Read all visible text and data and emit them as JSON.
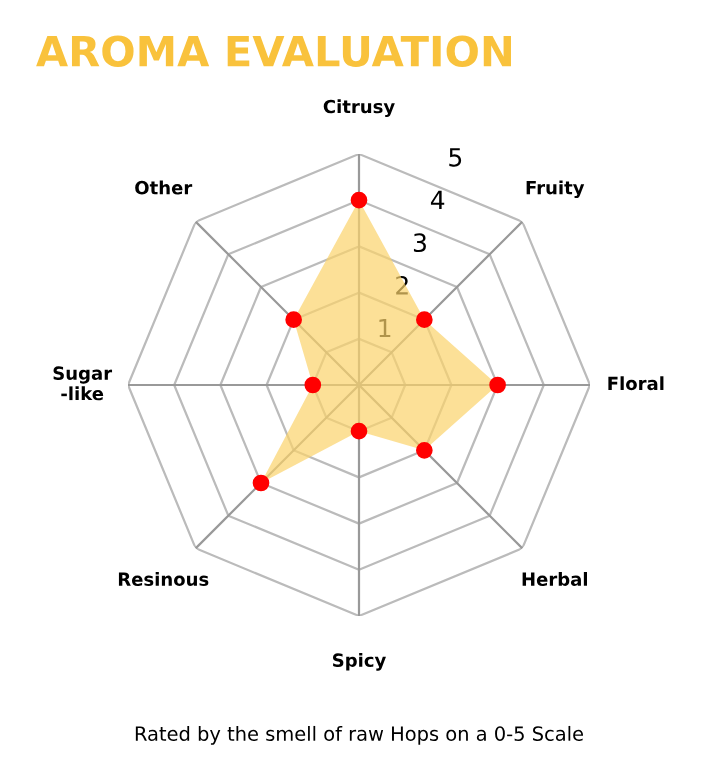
{
  "chart_data": {
    "type": "radar",
    "title": "AROMA EVALUATION",
    "categories": [
      "Citrusy",
      "Fruity",
      "Floral",
      "Herbal",
      "Spicy",
      "Resinous",
      "Sugar\n-like",
      "Other"
    ],
    "series": [
      {
        "color": "#fbd36b",
        "values": [
          4,
          2,
          3,
          2,
          1,
          3,
          1,
          2
        ]
      }
    ],
    "ylim": [
      0,
      5
    ],
    "yticks": [
      1,
      2,
      3,
      4,
      5
    ],
    "grid": true,
    "marker": "circle",
    "annotations": [
      "Rated by the smell of raw Hops on a 0-5 Scale"
    ]
  }
}
